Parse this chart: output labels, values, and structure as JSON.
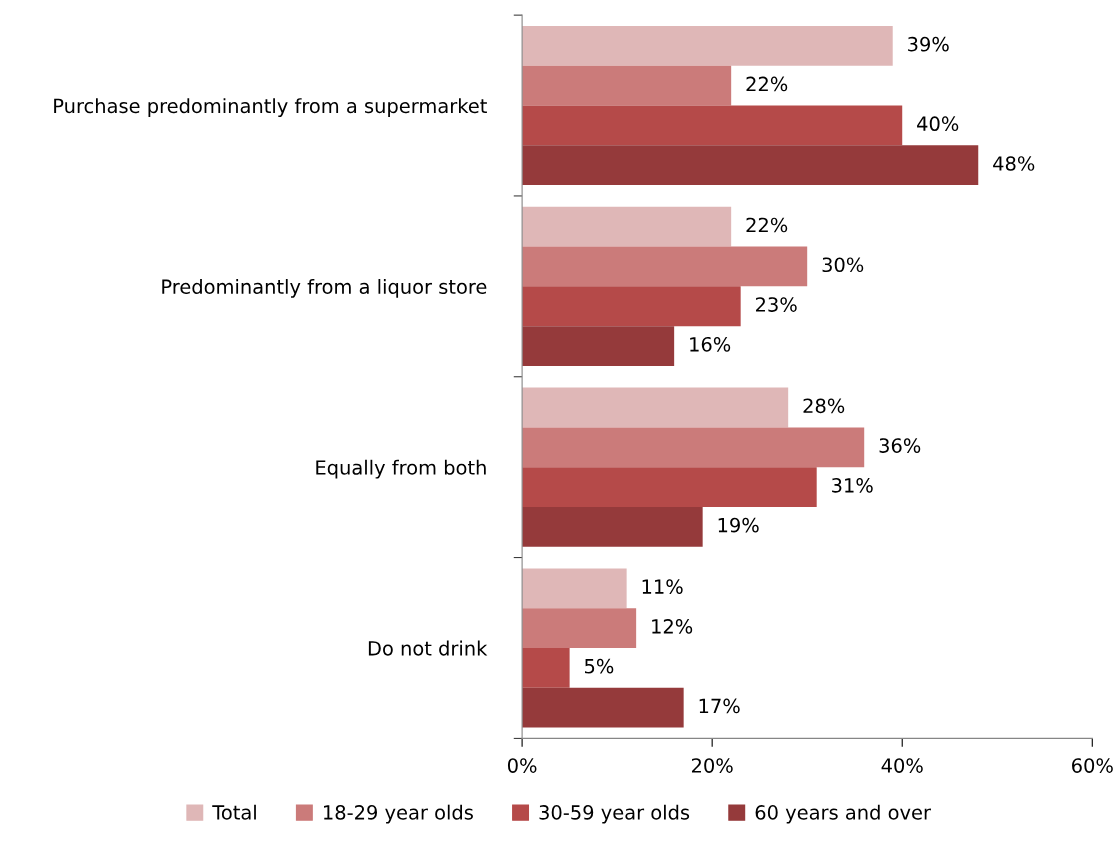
{
  "chart_data": {
    "type": "bar",
    "orientation": "horizontal",
    "categories": [
      "Purchase predominantly from a supermarket",
      "Predominantly from a liquor store",
      "Equally from both",
      "Do not drink"
    ],
    "series": [
      {
        "name": "Total",
        "color": "#dfb7b7",
        "values": [
          39,
          22,
          28,
          11
        ],
        "value_labels": [
          "39%",
          "22%",
          "28%",
          "11%"
        ]
      },
      {
        "name": "18-29 year olds",
        "color": "#cb7b7a",
        "values": [
          22,
          30,
          36,
          12
        ],
        "value_labels": [
          "22%",
          "30%",
          "36%",
          "12%"
        ]
      },
      {
        "name": "30-59 year olds",
        "color": "#b54a49",
        "values": [
          40,
          23,
          31,
          5
        ],
        "value_labels": [
          "40%",
          "23%",
          "31%",
          "5%"
        ]
      },
      {
        "name": "60 years and over",
        "color": "#953a3b",
        "values": [
          48,
          16,
          19,
          17
        ],
        "value_labels": [
          "48%",
          "16%",
          "19%",
          "17%"
        ]
      }
    ],
    "xlim": [
      0,
      60
    ],
    "xticks": [
      {
        "value": 0,
        "label": "0%"
      },
      {
        "value": 20,
        "label": "20%"
      },
      {
        "value": 40,
        "label": "40%"
      },
      {
        "value": 60,
        "label": "60%"
      }
    ],
    "grid": false,
    "legend": "bottom"
  }
}
